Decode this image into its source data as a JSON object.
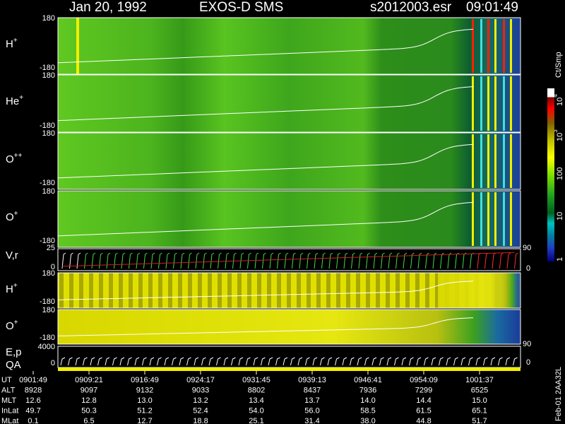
{
  "header": {
    "date": "Jan 20, 1992",
    "instrument": "EXOS-D SMS",
    "file": "s2012003.esr",
    "time": "09:01:49"
  },
  "panels": [
    {
      "label": {
        "base": "H",
        "sup": "+"
      },
      "ymax": "180",
      "ymin": "-180"
    },
    {
      "label": {
        "base": "He",
        "sup": "+"
      },
      "ymax": "180",
      "ymin": "-180"
    },
    {
      "label": {
        "base": "O",
        "sup": "++"
      },
      "ymax": "180",
      "ymin": "-180"
    },
    {
      "label": {
        "base": "O",
        "sup": "+"
      },
      "ymax": "180",
      "ymin": "-180"
    },
    {
      "label": {
        "base": "H",
        "sup": "+"
      },
      "ymax": "180",
      "ymin": "-180"
    },
    {
      "label": {
        "base": "O",
        "sup": "+"
      },
      "ymax": "180",
      "ymin": "-180"
    }
  ],
  "velocity_panel": {
    "label": "V,r",
    "ymax": "25",
    "ymin": "0",
    "right_max": "90",
    "right_min": "0"
  },
  "energy_panel": {
    "labels": [
      "E,p",
      "QA"
    ],
    "ymax": "4000",
    "ymin": "0",
    "right_max": "90",
    "right_min": "0"
  },
  "colorbar": {
    "title": "Ct/Smp",
    "labels": [
      {
        "base": "10",
        "sup": "4"
      },
      {
        "base": "10",
        "sup": "3"
      },
      {
        "base": "100",
        "sup": ""
      },
      {
        "base": "10",
        "sup": ""
      },
      {
        "base": "1",
        "sup": ""
      }
    ]
  },
  "table": {
    "rows": [
      {
        "label": "UT",
        "values": [
          "0901:49",
          "0909:21",
          "0916:49",
          "0924:17",
          "0931:45",
          "0939:13",
          "0946:41",
          "0954:09",
          "1001:37"
        ]
      },
      {
        "label": "ALT",
        "values": [
          "8928",
          "9097",
          "9132",
          "9033",
          "8802",
          "8437",
          "7936",
          "7299",
          "6525"
        ]
      },
      {
        "label": "MLT",
        "values": [
          "12.6",
          "12.8",
          "13.0",
          "13.2",
          "13.4",
          "13.7",
          "14.0",
          "14.4",
          "15.0"
        ]
      },
      {
        "label": "InLat",
        "values": [
          "49.7",
          "50.3",
          "51.2",
          "52.4",
          "54.0",
          "56.0",
          "58.5",
          "61.5",
          "65.1"
        ]
      },
      {
        "label": "MLat",
        "values": [
          "0.1",
          "6.5",
          "12.7",
          "18.8",
          "25.1",
          "31.4",
          "38.0",
          "44.8",
          "51.7"
        ]
      }
    ]
  },
  "footer_note": "Feb-01 2AA32L"
}
